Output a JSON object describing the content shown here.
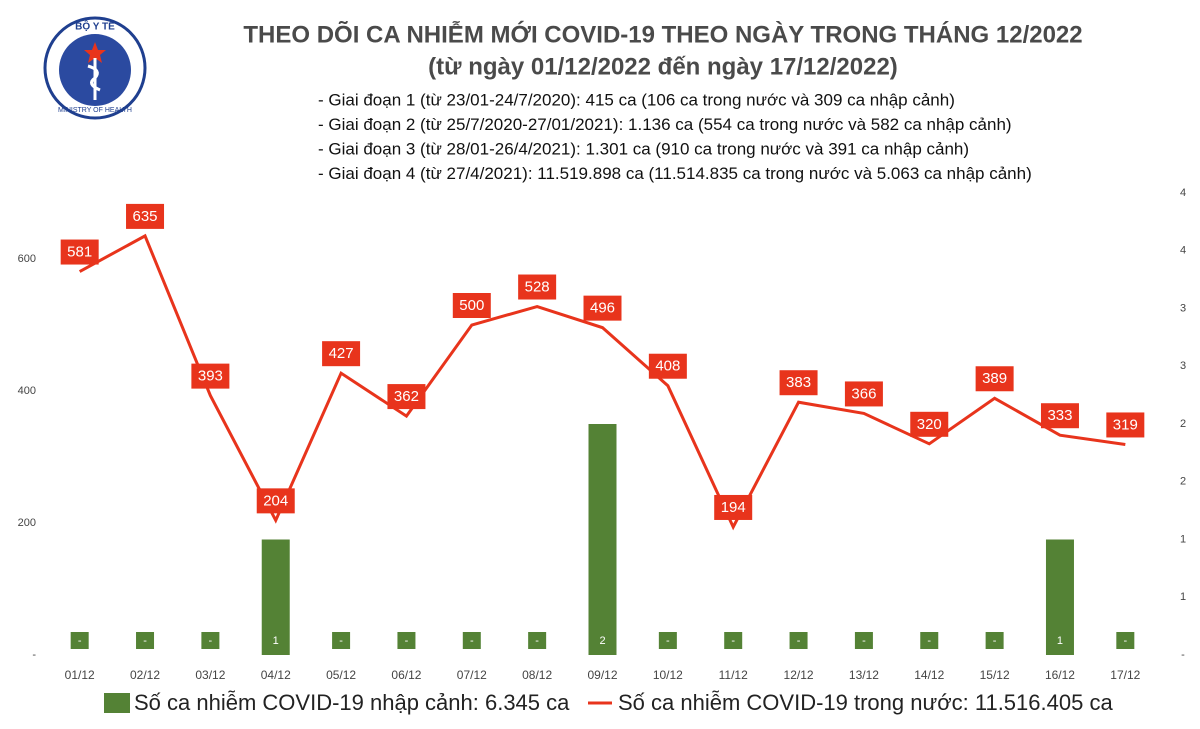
{
  "logo": {
    "top": "BỘ Y TẾ",
    "bottom": "MINISTRY OF HEALTH"
  },
  "chart_data": {
    "type": "combo",
    "title": "THEO DÕI CA NHIỄM MỚI COVID-19 THEO NGÀY TRONG THÁNG 12/2022",
    "subtitle": "(từ ngày 01/12/2022 đến ngày 17/12/2022)",
    "annotations": [
      "- Giai đoạn 1 (từ 23/01-24/7/2020): 415 ca (106 ca trong nước và 309 ca nhập cảnh)",
      "- Giai đoạn 2 (từ 25/7/2020-27/01/2021): 1.136 ca (554 ca trong nước và 582 ca nhập cảnh)",
      "- Giai đoạn 3 (từ 28/01-26/4/2021): 1.301 ca (910 ca trong nước và 391 ca nhập cảnh)",
      "- Giai đoạn 4 (từ 27/4/2021): 11.519.898 ca (11.514.835 ca trong nước và 5.063 ca nhập cảnh)"
    ],
    "categories": [
      "01/12",
      "02/12",
      "03/12",
      "04/12",
      "05/12",
      "06/12",
      "07/12",
      "08/12",
      "09/12",
      "10/12",
      "11/12",
      "12/12",
      "13/12",
      "14/12",
      "15/12",
      "16/12",
      "17/12"
    ],
    "series": [
      {
        "name": "Số ca nhiễm COVID-19 nhập cảnh: 6.345 ca",
        "type": "bar",
        "axis": "y2",
        "color": "#548235",
        "values": [
          0,
          0,
          0,
          1,
          0,
          0,
          0,
          0,
          2,
          0,
          0,
          0,
          0,
          0,
          0,
          1,
          0
        ],
        "value_labels": [
          "-",
          "-",
          "-",
          "1",
          "-",
          "-",
          "-",
          "-",
          "2",
          "-",
          "-",
          "-",
          "-",
          "-",
          "-",
          "1",
          "-"
        ]
      },
      {
        "name": "Số ca nhiễm COVID-19 trong nước: 11.516.405 ca",
        "type": "line",
        "color": "#e8341c",
        "values": [
          581,
          635,
          393,
          204,
          427,
          362,
          500,
          528,
          496,
          408,
          194,
          383,
          366,
          320,
          389,
          333,
          319
        ]
      }
    ],
    "ylim": [
      0,
      700
    ],
    "yticks": [
      {
        "value": 0,
        "label": "-"
      },
      200,
      400,
      600
    ],
    "y2lim": [
      0,
      4
    ],
    "y2ticks": [
      {
        "value": 0,
        "label": "-"
      },
      {
        "value": 0.5,
        "label": "1"
      },
      1,
      {
        "value": 1.5,
        "label": "2"
      },
      2,
      {
        "value": 2.5,
        "label": "3"
      },
      3,
      {
        "value": 3.5,
        "label": "4"
      },
      4
    ],
    "legend": "bottom"
  }
}
